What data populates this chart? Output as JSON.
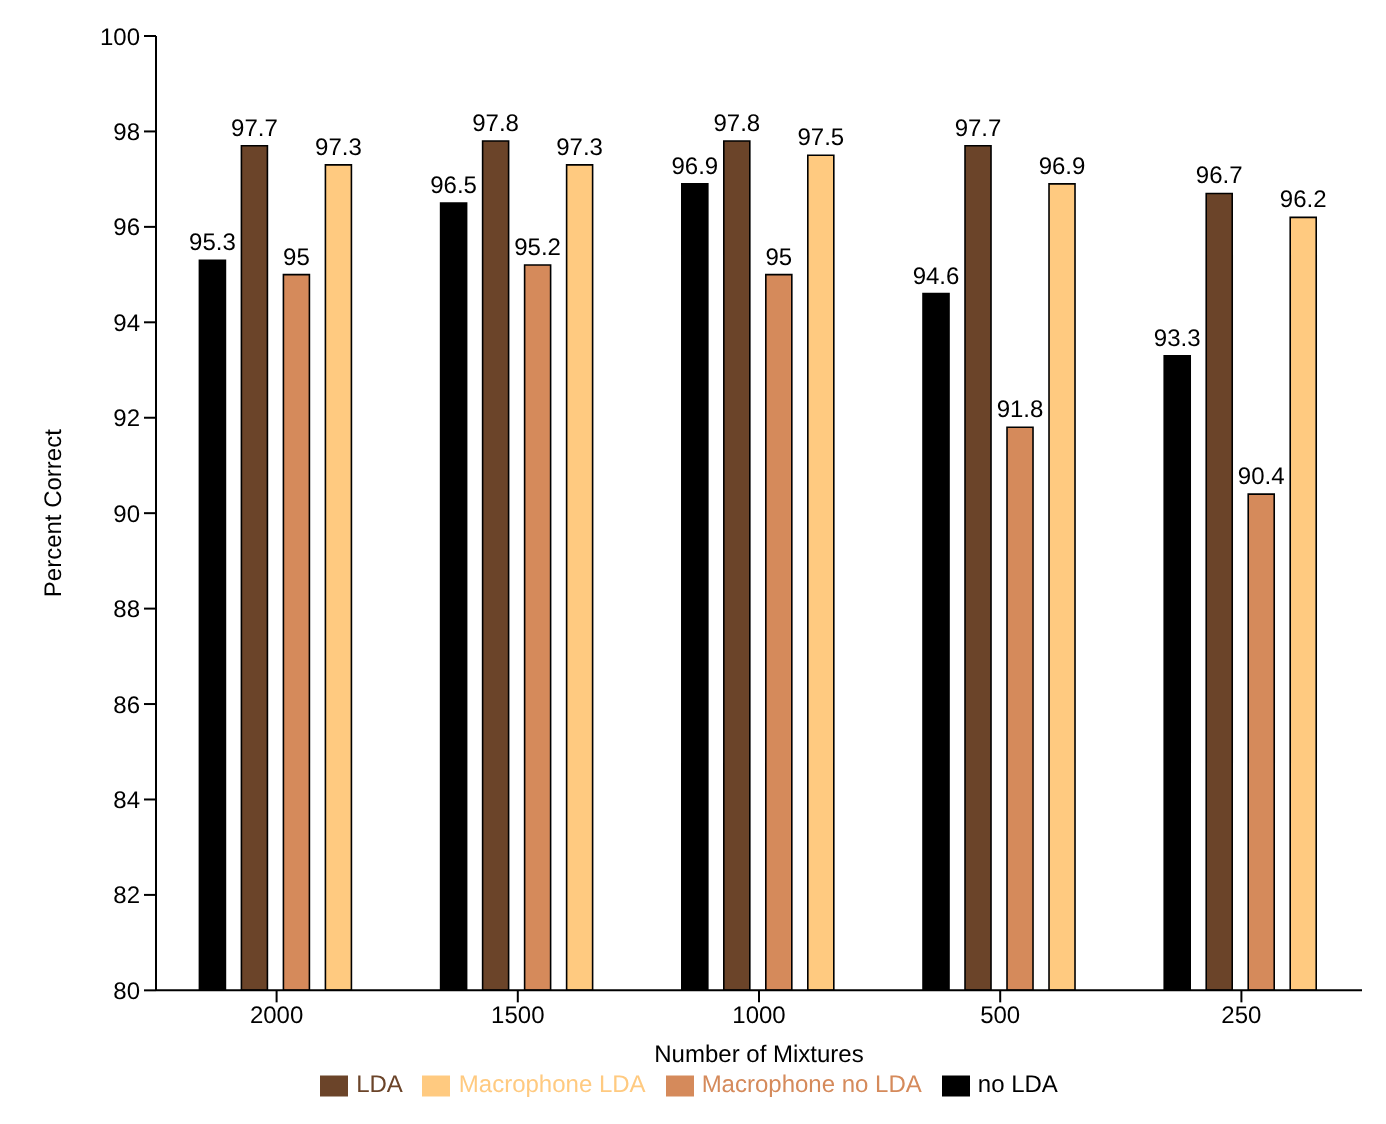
{
  "chart_data": {
    "type": "bar",
    "xlabel": "Number of Mixtures",
    "ylabel": "Percent Correct",
    "categories": [
      "2000",
      "1500",
      "1000",
      "500",
      "250"
    ],
    "series": [
      {
        "name": "no LDA",
        "color": "#000000",
        "values": [
          95.3,
          96.5,
          96.9,
          94.6,
          93.3
        ]
      },
      {
        "name": "LDA",
        "color": "#6b4429",
        "values": [
          97.7,
          97.8,
          97.8,
          97.7,
          96.7
        ]
      },
      {
        "name": "Macrophone no LDA",
        "color": "#d58a5b",
        "values": [
          95,
          95.2,
          95,
          91.8,
          90.4
        ]
      },
      {
        "name": "Macrophone LDA",
        "color": "#ffca80",
        "values": [
          97.3,
          97.3,
          97.5,
          96.9,
          96.2
        ]
      }
    ],
    "ylim": [
      80,
      100
    ],
    "yticks": [
      80,
      82,
      84,
      86,
      88,
      90,
      92,
      94,
      96,
      98,
      100
    ],
    "data_labels": true,
    "legend": "bottom",
    "grid": false
  }
}
